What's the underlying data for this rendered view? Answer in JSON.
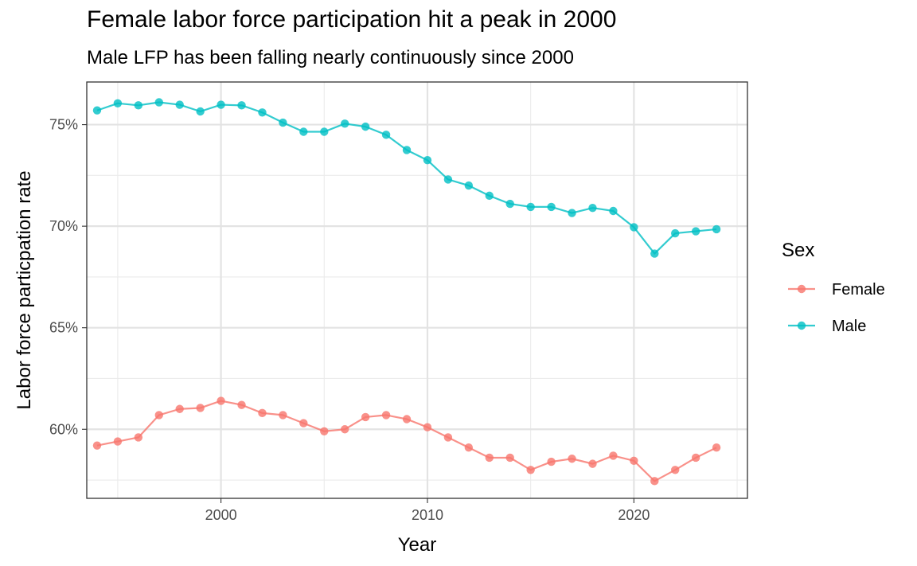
{
  "chart_data": {
    "type": "line",
    "title": "Female labor force participation hit a peak in 2000",
    "subtitle": "Male LFP has been falling nearly continuously since 2000",
    "xlabel": "Year",
    "ylabel": "Labor force particpation rate",
    "legend_title": "Sex",
    "legend_position": "right",
    "grid": true,
    "xlim": [
      1993.5,
      2025.5
    ],
    "ylim": [
      56.6,
      77.1
    ],
    "x_ticks": [
      {
        "value": 2000,
        "label": "2000"
      },
      {
        "value": 2010,
        "label": "2010"
      },
      {
        "value": 2020,
        "label": "2020"
      }
    ],
    "y_ticks": [
      {
        "value": 60,
        "label": "60%"
      },
      {
        "value": 65,
        "label": "65%"
      },
      {
        "value": 70,
        "label": "70%"
      },
      {
        "value": 75,
        "label": "75%"
      }
    ],
    "x": [
      1994,
      1995,
      1996,
      1997,
      1998,
      1999,
      2000,
      2001,
      2002,
      2003,
      2004,
      2005,
      2006,
      2007,
      2008,
      2009,
      2010,
      2011,
      2012,
      2013,
      2014,
      2015,
      2016,
      2017,
      2018,
      2019,
      2020,
      2021,
      2022,
      2023,
      2024
    ],
    "series": [
      {
        "name": "Female",
        "color": "#F8766D",
        "values": [
          59.2,
          59.4,
          59.6,
          60.7,
          61.0,
          61.05,
          61.4,
          61.2,
          60.8,
          60.7,
          60.3,
          59.9,
          60.0,
          60.6,
          60.7,
          60.5,
          60.1,
          59.6,
          59.1,
          58.6,
          58.6,
          58.0,
          58.4,
          58.55,
          58.3,
          58.7,
          58.45,
          57.45,
          58.0,
          58.6,
          59.1
        ]
      },
      {
        "name": "Male",
        "color": "#00BFC4",
        "values": [
          75.7,
          76.05,
          75.95,
          76.1,
          75.98,
          75.65,
          75.98,
          75.95,
          75.6,
          75.1,
          74.65,
          74.65,
          75.05,
          74.9,
          74.5,
          73.75,
          73.25,
          72.3,
          72.0,
          71.5,
          71.1,
          70.95,
          70.95,
          70.65,
          70.9,
          70.75,
          69.95,
          68.65,
          69.65,
          69.75,
          69.85
        ]
      }
    ]
  }
}
